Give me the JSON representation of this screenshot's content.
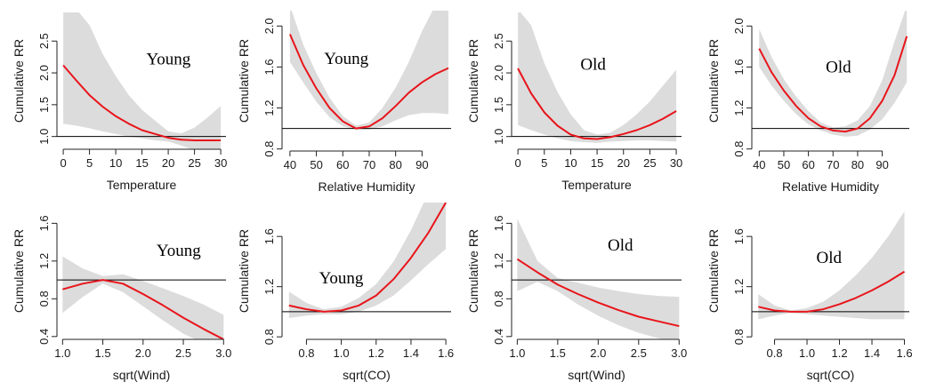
{
  "colors": {
    "curve": "#e8151b",
    "band": "#dcdcdc",
    "reference": "#000000",
    "axis": "#222222"
  },
  "chart_data": [
    {
      "type": "line",
      "annotation": "Young",
      "xlabel": "Temperature",
      "ylabel": "Cumulative RR",
      "xlim": [
        -1.2,
        31
      ],
      "ylim": [
        0.8,
        2.95
      ],
      "xticks": [
        0,
        5,
        10,
        15,
        20,
        25,
        30
      ],
      "xtick_labels": [
        "0",
        "5",
        "10",
        "15",
        "20",
        "25",
        "30"
      ],
      "yticks": [
        1.0,
        1.5,
        2.0,
        2.5
      ],
      "ytick_labels": [
        "1.0",
        "1.5",
        "2.0",
        "2.5"
      ],
      "reference": 1.0,
      "x": [
        0,
        2.5,
        5,
        7.5,
        10,
        12.5,
        15,
        17.5,
        20,
        22.5,
        25,
        27.5,
        30
      ],
      "y": [
        2.12,
        1.88,
        1.65,
        1.47,
        1.32,
        1.2,
        1.1,
        1.04,
        0.98,
        0.95,
        0.94,
        0.94,
        0.94
      ],
      "lower": [
        1.2,
        1.17,
        1.13,
        1.08,
        1.04,
        1.0,
        0.97,
        0.94,
        0.92,
        0.86,
        0.78,
        0.71,
        0.66
      ],
      "upper": [
        3.0,
        3.0,
        2.75,
        2.3,
        1.95,
        1.65,
        1.42,
        1.25,
        1.08,
        1.05,
        1.14,
        1.3,
        1.48
      ]
    },
    {
      "type": "line",
      "annotation": "Young",
      "xlabel": "Relative Humidity",
      "ylabel": "Cumulative RR",
      "xlim": [
        37,
        101
      ],
      "ylim": [
        0.78,
        2.15
      ],
      "xticks": [
        40,
        50,
        60,
        70,
        80,
        90
      ],
      "xtick_labels": [
        "40",
        "50",
        "60",
        "70",
        "80",
        "90"
      ],
      "yticks": [
        0.8,
        1.2,
        1.6,
        2.0
      ],
      "ytick_labels": [
        "0.8",
        "1.2",
        "1.6",
        "2.0"
      ],
      "reference": 1.0,
      "x": [
        40,
        45,
        50,
        55,
        60,
        65,
        70,
        75,
        80,
        85,
        90,
        95,
        100
      ],
      "y": [
        1.92,
        1.62,
        1.39,
        1.2,
        1.07,
        1.0,
        1.02,
        1.1,
        1.22,
        1.35,
        1.45,
        1.53,
        1.59
      ],
      "lower": [
        1.65,
        1.45,
        1.26,
        1.11,
        1.02,
        0.99,
        0.99,
        1.02,
        1.08,
        1.13,
        1.15,
        1.15,
        1.14
      ],
      "upper": [
        2.2,
        1.82,
        1.54,
        1.3,
        1.12,
        1.03,
        1.06,
        1.2,
        1.4,
        1.65,
        1.95,
        2.2,
        2.2
      ]
    },
    {
      "type": "line",
      "annotation": "Old",
      "xlabel": "Temperature",
      "ylabel": "Cumulative RR",
      "xlim": [
        -1.2,
        31
      ],
      "ylim": [
        0.8,
        2.95
      ],
      "xticks": [
        0,
        5,
        10,
        15,
        20,
        25,
        30
      ],
      "xtick_labels": [
        "0",
        "5",
        "10",
        "15",
        "20",
        "25",
        "30"
      ],
      "yticks": [
        1.0,
        1.5,
        2.0,
        2.5
      ],
      "ytick_labels": [
        "1.0",
        "1.5",
        "2.0",
        "2.5"
      ],
      "reference": 1.0,
      "x": [
        0,
        2.5,
        5,
        7.5,
        10,
        12.5,
        15,
        17.5,
        20,
        22.5,
        25,
        27.5,
        30
      ],
      "y": [
        2.07,
        1.68,
        1.38,
        1.17,
        1.03,
        0.97,
        0.96,
        0.99,
        1.04,
        1.1,
        1.18,
        1.28,
        1.4
      ],
      "lower": [
        1.18,
        1.1,
        1.03,
        0.97,
        0.93,
        0.91,
        0.9,
        0.92,
        0.93,
        0.94,
        0.94,
        0.93,
        0.92
      ],
      "upper": [
        3.0,
        2.75,
        2.15,
        1.7,
        1.35,
        1.1,
        1.03,
        1.06,
        1.18,
        1.35,
        1.55,
        1.8,
        2.05
      ]
    },
    {
      "type": "line",
      "annotation": "Old",
      "xlabel": "Relative Humidity",
      "ylabel": "Cumulative RR",
      "xlim": [
        37,
        101
      ],
      "ylim": [
        0.78,
        2.15
      ],
      "xticks": [
        40,
        50,
        60,
        70,
        80,
        90
      ],
      "xtick_labels": [
        "40",
        "50",
        "60",
        "70",
        "80",
        "90"
      ],
      "yticks": [
        0.8,
        1.2,
        1.6,
        2.0
      ],
      "ytick_labels": [
        "0.8",
        "1.2",
        "1.6",
        "2.0"
      ],
      "reference": 1.0,
      "x": [
        40,
        45,
        50,
        55,
        60,
        65,
        70,
        75,
        80,
        85,
        90,
        95,
        100
      ],
      "y": [
        1.78,
        1.55,
        1.37,
        1.22,
        1.1,
        1.02,
        0.98,
        0.97,
        1.0,
        1.1,
        1.27,
        1.52,
        1.9
      ],
      "lower": [
        1.6,
        1.42,
        1.27,
        1.14,
        1.04,
        0.98,
        0.94,
        0.92,
        0.93,
        0.99,
        1.09,
        1.25,
        1.45
      ],
      "upper": [
        1.97,
        1.7,
        1.48,
        1.31,
        1.17,
        1.06,
        1.01,
        1.02,
        1.08,
        1.22,
        1.47,
        1.85,
        2.2
      ]
    },
    {
      "type": "line",
      "annotation": "Young",
      "xlabel": "sqrt(Wind)",
      "ylabel": "Cumulative RR",
      "xlim": [
        0.93,
        3.03
      ],
      "ylim": [
        0.37,
        1.82
      ],
      "xticks": [
        1.0,
        1.5,
        2.0,
        2.5,
        3.0
      ],
      "xtick_labels": [
        "1.0",
        "1.5",
        "2.0",
        "2.5",
        "3.0"
      ],
      "yticks": [
        0.4,
        0.8,
        1.2,
        1.6
      ],
      "ytick_labels": [
        "0.4",
        "0.8",
        "1.2",
        "1.6"
      ],
      "reference": 1.0,
      "x": [
        1.0,
        1.25,
        1.5,
        1.75,
        2.0,
        2.25,
        2.5,
        2.75,
        3.0
      ],
      "y": [
        0.9,
        0.96,
        1.0,
        0.96,
        0.85,
        0.73,
        0.6,
        0.48,
        0.37
      ],
      "lower": [
        0.65,
        0.82,
        0.96,
        0.87,
        0.72,
        0.57,
        0.43,
        0.33,
        0.26
      ],
      "upper": [
        1.25,
        1.12,
        1.04,
        1.06,
        0.99,
        0.91,
        0.83,
        0.74,
        0.63
      ]
    },
    {
      "type": "line",
      "annotation": "Young",
      "xlabel": "sqrt(CO)",
      "ylabel": "Cumulative RR",
      "xlim": [
        0.66,
        1.63
      ],
      "ylim": [
        0.78,
        1.87
      ],
      "xticks": [
        0.8,
        1.0,
        1.2,
        1.4,
        1.6
      ],
      "xtick_labels": [
        "0.8",
        "1.0",
        "1.2",
        "1.4",
        "1.6"
      ],
      "yticks": [
        0.8,
        1.2,
        1.6
      ],
      "ytick_labels": [
        "0.8",
        "1.2",
        "1.6"
      ],
      "reference": 1.0,
      "x": [
        0.7,
        0.8,
        0.9,
        1.0,
        1.1,
        1.2,
        1.3,
        1.4,
        1.5,
        1.6
      ],
      "y": [
        1.05,
        1.02,
        1.0,
        1.01,
        1.05,
        1.13,
        1.26,
        1.43,
        1.63,
        1.87
      ],
      "lower": [
        0.95,
        0.97,
        0.98,
        0.98,
        1.0,
        1.05,
        1.13,
        1.25,
        1.38,
        1.5
      ],
      "upper": [
        1.16,
        1.07,
        1.02,
        1.04,
        1.11,
        1.22,
        1.4,
        1.65,
        1.95,
        2.3
      ]
    },
    {
      "type": "line",
      "annotation": "Old",
      "xlabel": "sqrt(Wind)",
      "ylabel": "Cumulative RR",
      "xlim": [
        0.93,
        3.03
      ],
      "ylim": [
        0.37,
        1.82
      ],
      "xticks": [
        1.0,
        1.5,
        2.0,
        2.5,
        3.0
      ],
      "xtick_labels": [
        "1.0",
        "1.5",
        "2.0",
        "2.5",
        "3.0"
      ],
      "yticks": [
        0.4,
        0.8,
        1.2,
        1.6
      ],
      "ytick_labels": [
        "0.4",
        "0.8",
        "1.2",
        "1.6"
      ],
      "reference": 1.0,
      "x": [
        1.0,
        1.25,
        1.5,
        1.75,
        2.0,
        2.25,
        2.5,
        2.75,
        3.0
      ],
      "y": [
        1.22,
        1.08,
        0.95,
        0.85,
        0.76,
        0.68,
        0.61,
        0.56,
        0.51
      ],
      "lower": [
        0.88,
        0.98,
        0.88,
        0.74,
        0.62,
        0.52,
        0.44,
        0.38,
        0.34
      ],
      "upper": [
        1.65,
        1.2,
        1.02,
        0.97,
        0.92,
        0.88,
        0.85,
        0.83,
        0.82
      ]
    },
    {
      "type": "line",
      "annotation": "Old",
      "xlabel": "sqrt(CO)",
      "ylabel": "Cumulative RR",
      "xlim": [
        0.66,
        1.63
      ],
      "ylim": [
        0.78,
        1.87
      ],
      "xticks": [
        0.8,
        1.0,
        1.2,
        1.4,
        1.6
      ],
      "xtick_labels": [
        "0.8",
        "1.0",
        "1.2",
        "1.4",
        "1.6"
      ],
      "yticks": [
        0.8,
        1.2,
        1.6
      ],
      "ytick_labels": [
        "0.8",
        "1.2",
        "1.6"
      ],
      "reference": 1.0,
      "x": [
        0.7,
        0.8,
        0.9,
        1.0,
        1.1,
        1.2,
        1.3,
        1.4,
        1.5,
        1.6
      ],
      "y": [
        1.04,
        1.01,
        1.0,
        1.0,
        1.02,
        1.06,
        1.11,
        1.17,
        1.24,
        1.32
      ],
      "lower": [
        0.94,
        0.97,
        0.99,
        0.98,
        0.97,
        0.96,
        0.95,
        0.94,
        0.94,
        0.94
      ],
      "upper": [
        1.14,
        1.05,
        1.01,
        1.03,
        1.08,
        1.17,
        1.29,
        1.43,
        1.6,
        1.8
      ]
    }
  ]
}
